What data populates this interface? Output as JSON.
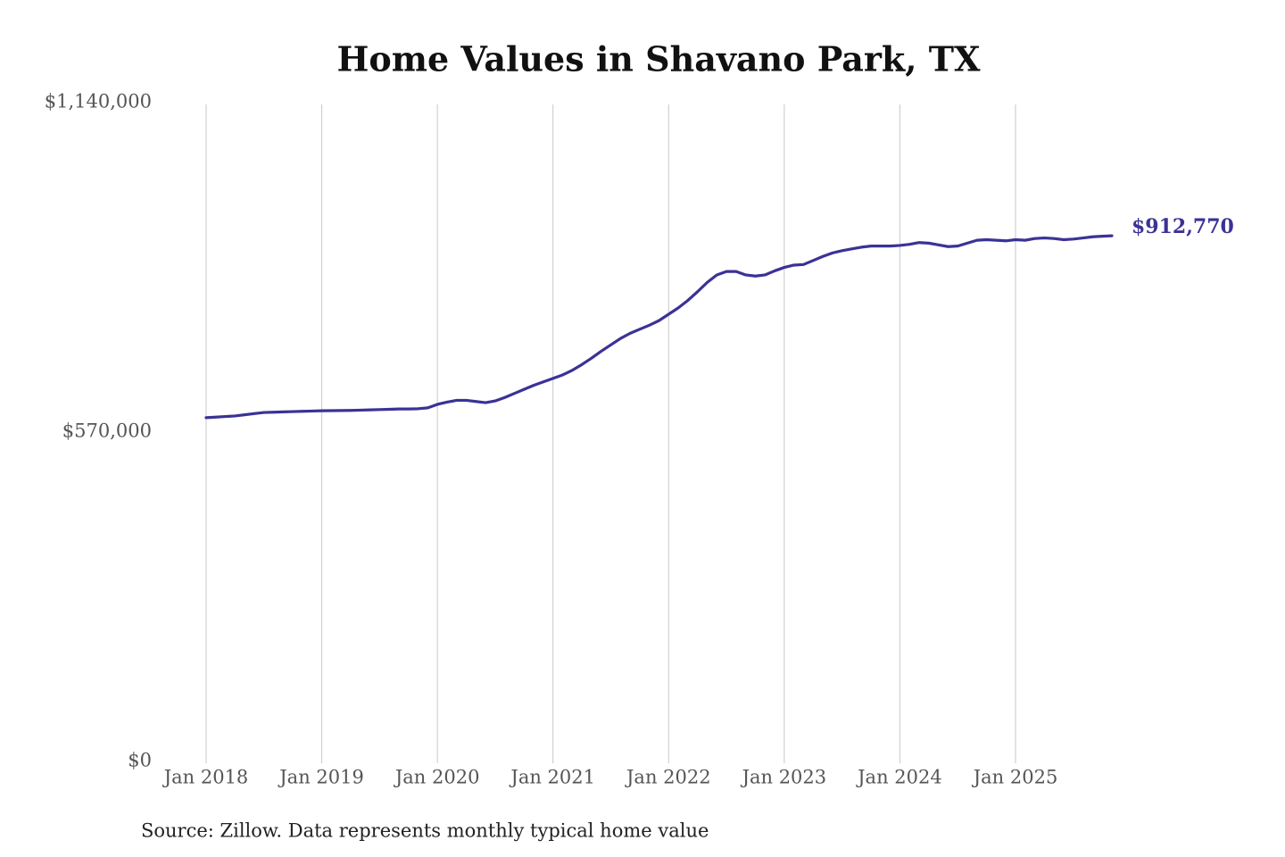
{
  "chart_data": {
    "type": "line",
    "title": "Home Values in Shavano Park, TX",
    "note": "Source: Zillow. Data represents monthly typical home value",
    "x": [
      "2018-01",
      "2018-02",
      "2018-03",
      "2018-04",
      "2018-05",
      "2018-06",
      "2018-07",
      "2018-08",
      "2018-09",
      "2018-10",
      "2018-11",
      "2018-12",
      "2019-01",
      "2019-02",
      "2019-03",
      "2019-04",
      "2019-05",
      "2019-06",
      "2019-07",
      "2019-08",
      "2019-09",
      "2019-10",
      "2019-11",
      "2019-12",
      "2020-01",
      "2020-02",
      "2020-03",
      "2020-04",
      "2020-05",
      "2020-06",
      "2020-07",
      "2020-08",
      "2020-09",
      "2020-10",
      "2020-11",
      "2020-12",
      "2021-01",
      "2021-02",
      "2021-03",
      "2021-04",
      "2021-05",
      "2021-06",
      "2021-07",
      "2021-08",
      "2021-09",
      "2021-10",
      "2021-11",
      "2021-12",
      "2022-01",
      "2022-02",
      "2022-03",
      "2022-04",
      "2022-05",
      "2022-06",
      "2022-07",
      "2022-08",
      "2022-09",
      "2022-10",
      "2022-11",
      "2022-12",
      "2023-01",
      "2023-02",
      "2023-03",
      "2023-04",
      "2023-05",
      "2023-06",
      "2023-07",
      "2023-08",
      "2023-09",
      "2023-10",
      "2023-11",
      "2023-12",
      "2024-01",
      "2024-02",
      "2024-03",
      "2024-04",
      "2024-05",
      "2024-06",
      "2024-07",
      "2024-08",
      "2024-09",
      "2024-10",
      "2024-11",
      "2024-12",
      "2025-01",
      "2025-02",
      "2025-03",
      "2025-04",
      "2025-05",
      "2025-06",
      "2025-07",
      "2025-08",
      "2025-09",
      "2025-10",
      "2025-11"
    ],
    "series": [
      {
        "name": "Home value",
        "color": "#3b3296",
        "values": [
          598000,
          599000,
          600000,
          601000,
          603000,
          605000,
          607000,
          607500,
          608000,
          608500,
          609000,
          609500,
          610000,
          610200,
          610400,
          610600,
          611000,
          611500,
          612000,
          612500,
          613000,
          613000,
          613500,
          615000,
          621000,
          625000,
          628000,
          628000,
          626000,
          624000,
          627000,
          633000,
          640000,
          647000,
          654000,
          660000,
          666000,
          672000,
          680000,
          690000,
          701000,
          713000,
          724000,
          735000,
          744000,
          751000,
          758000,
          766000,
          777000,
          788000,
          801000,
          816000,
          832000,
          845000,
          851000,
          851000,
          845000,
          843000,
          845000,
          852000,
          858000,
          862000,
          863000,
          870000,
          877000,
          883000,
          887000,
          890000,
          893000,
          895000,
          895000,
          895000,
          896000,
          898000,
          901000,
          900000,
          897000,
          894000,
          895000,
          900000,
          905000,
          906000,
          905000,
          904000,
          906000,
          905000,
          908000,
          909000,
          908000,
          906000,
          907000,
          909000,
          911000,
          912000,
          912770
        ],
        "value_labels": [
          null,
          null,
          null,
          null,
          null,
          null,
          null,
          null,
          null,
          null,
          null,
          null,
          null,
          null,
          null,
          null,
          null,
          null,
          null,
          null,
          null,
          null,
          null,
          null,
          null,
          null,
          null,
          null,
          null,
          null,
          null,
          null,
          null,
          null,
          null,
          null,
          null,
          null,
          null,
          null,
          null,
          null,
          null,
          null,
          null,
          null,
          null,
          null,
          null,
          null,
          null,
          null,
          null,
          null,
          null,
          null,
          null,
          null,
          null,
          null,
          null,
          null,
          null,
          null,
          null,
          null,
          null,
          null,
          null,
          null,
          null,
          null,
          null,
          null,
          null,
          null,
          null,
          null,
          null,
          null,
          null,
          null,
          null,
          null,
          null,
          null,
          null,
          null,
          null,
          null,
          null,
          null,
          null,
          null,
          "$912,770"
        ]
      }
    ],
    "xlim": [
      "2018-01",
      "2025-11"
    ],
    "xticks": [
      {
        "value": "2018-01",
        "label": "Jan 2018"
      },
      {
        "value": "2019-01",
        "label": "Jan 2019"
      },
      {
        "value": "2020-01",
        "label": "Jan 2020"
      },
      {
        "value": "2021-01",
        "label": "Jan 2021"
      },
      {
        "value": "2022-01",
        "label": "Jan 2022"
      },
      {
        "value": "2023-01",
        "label": "Jan 2023"
      },
      {
        "value": "2024-01",
        "label": "Jan 2024"
      },
      {
        "value": "2025-01",
        "label": "Jan 2025"
      }
    ],
    "ylim": [
      0,
      1140000
    ],
    "yticks": [
      {
        "value": 0,
        "label": "$0"
      },
      {
        "value": 570000,
        "label": "$570,000"
      },
      {
        "value": 1140000,
        "label": "$1,140,000"
      }
    ],
    "grid": "x"
  }
}
